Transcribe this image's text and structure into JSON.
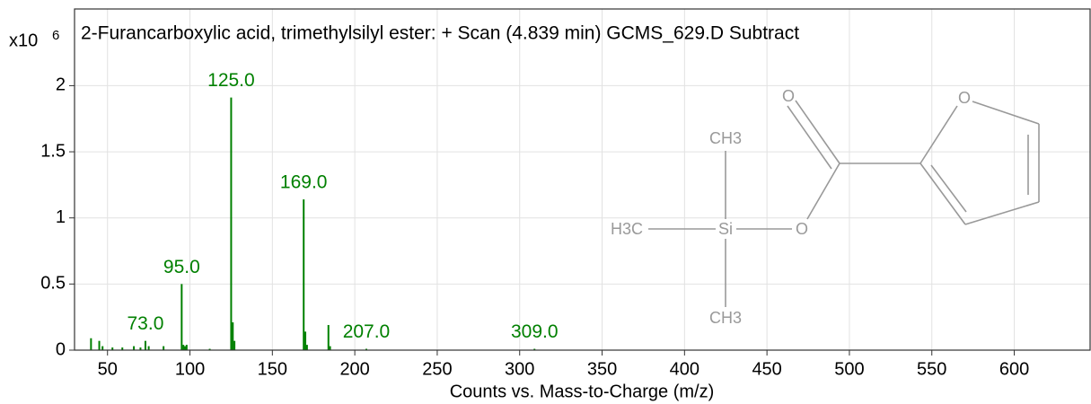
{
  "chart_data": {
    "type": "spectrum",
    "title": "2-Furancarboxylic acid, trimethylsilyl ester: + Scan (4.839 min) GCMS_629.D  Subtract",
    "y_scale_label": "x10",
    "y_scale_exponent": "6",
    "xlabel": "Counts vs. Mass-to-Charge (m/z)",
    "color": "#008000",
    "x": [
      40,
      45,
      47,
      53,
      59,
      66,
      70,
      73,
      75,
      84,
      95,
      96,
      97,
      98,
      112,
      125,
      126,
      127,
      169,
      170,
      171,
      184,
      185,
      207,
      309
    ],
    "values": [
      0.09,
      0.07,
      0.03,
      0.02,
      0.02,
      0.03,
      0.02,
      0.07,
      0.03,
      0.03,
      0.5,
      0.04,
      0.03,
      0.04,
      0.01,
      1.91,
      0.21,
      0.07,
      1.14,
      0.14,
      0.04,
      0.19,
      0.03,
      0.01,
      0.01
    ],
    "annotations": [
      {
        "value": 73,
        "label": "73.0"
      },
      {
        "value": 95,
        "label": "95.0"
      },
      {
        "value": 125,
        "label": "125.0"
      },
      {
        "value": 169,
        "label": "169.0"
      },
      {
        "value": 207,
        "label": "207.0"
      },
      {
        "value": 309,
        "label": "309.0"
      }
    ],
    "xlim": [
      30,
      646
    ],
    "ylim": [
      0,
      2.58
    ],
    "xticks": [
      50,
      100,
      150,
      200,
      250,
      300,
      350,
      400,
      450,
      500,
      550,
      600
    ],
    "yticks": [
      0,
      0.5,
      1,
      1.5,
      2
    ],
    "grid": true
  },
  "structure_labels": [
    "O",
    "O",
    "O",
    "CH3",
    "H3C",
    "Si",
    "CH3"
  ]
}
